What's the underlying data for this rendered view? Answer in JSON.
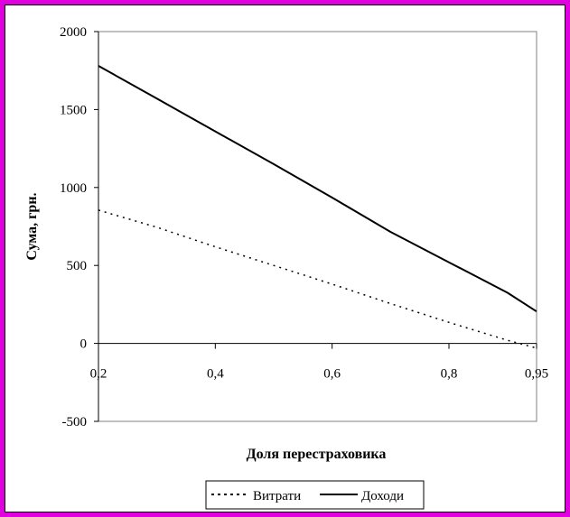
{
  "chart_data": {
    "type": "line",
    "title": "",
    "xlabel": "Доля перестраховика",
    "ylabel": "Сума, грн.",
    "x_tick_labels": [
      "0,2",
      "0,4",
      "0,6",
      "0,8",
      "0,95"
    ],
    "x_tick_values": [
      0.2,
      0.4,
      0.6,
      0.8,
      0.95
    ],
    "x": [
      0.2,
      0.3,
      0.4,
      0.5,
      0.6,
      0.7,
      0.8,
      0.9,
      0.95
    ],
    "xlim": [
      0.2,
      0.95
    ],
    "y_tick_labels": [
      "2000",
      "1500",
      "1000",
      "500",
      "0",
      "-500"
    ],
    "y_tick_values": [
      2000,
      1500,
      1000,
      500,
      0,
      -500
    ],
    "ylim": [
      -500,
      2000
    ],
    "grid": false,
    "legend_position": "bottom-center",
    "series": [
      {
        "name": "Витрати",
        "style": "dotted",
        "color": "#000000",
        "values": [
          855,
          745,
          620,
          500,
          380,
          255,
          135,
          20,
          -30
        ]
      },
      {
        "name": "Доходи",
        "style": "solid",
        "color": "#000000",
        "values": [
          1780,
          1570,
          1360,
          1150,
          935,
          715,
          520,
          325,
          205
        ]
      }
    ]
  },
  "colors": {
    "border": "#e000e0",
    "background": "#ffffff",
    "ink": "#000000"
  }
}
